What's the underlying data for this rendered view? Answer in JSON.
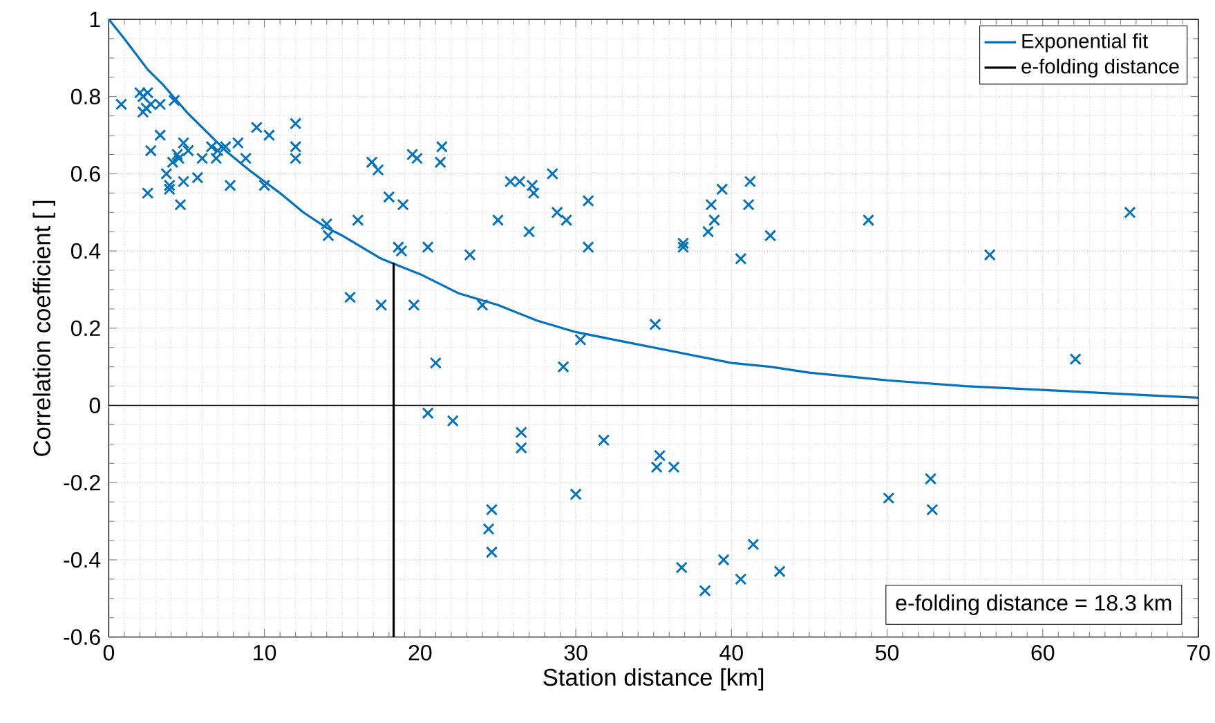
{
  "chart_data": {
    "type": "scatter",
    "xlabel": "Station distance [km]",
    "ylabel": "Correlation coefficient [ ]",
    "xlim": [
      0,
      70
    ],
    "ylim": [
      -0.6,
      1
    ],
    "xticks": [
      0,
      10,
      20,
      30,
      40,
      50,
      60,
      70
    ],
    "yticks": [
      -0.6,
      -0.4,
      -0.2,
      0,
      0.2,
      0.4,
      0.6,
      0.8,
      1
    ],
    "grid": true,
    "legend": "top right",
    "annotations": [
      "e-folding distance = 18.3 km"
    ],
    "ref_lines": [
      {
        "axis": "y",
        "value": 0,
        "color": "#000000"
      }
    ],
    "series": [
      {
        "marker": "cross",
        "color": "#0072bd",
        "x": [
          0.8,
          2,
          2.2,
          2.4,
          2.5,
          2.2,
          2.7,
          3.3,
          4.2,
          2.5,
          2.7,
          3.3,
          3.7,
          3.9,
          4.1,
          4.4,
          4.5,
          4.8,
          4.6,
          5.1,
          3.9,
          4.8,
          5.7,
          6.0,
          6.6,
          7.0,
          6.9,
          7.5,
          7.8,
          8.3,
          8.8,
          9.5,
          10.3,
          10.0,
          12,
          12,
          12,
          14,
          14.1,
          15.5,
          16,
          16.9,
          17.3,
          17.5,
          18,
          18.6,
          18.8,
          18.9,
          19.5,
          19.8,
          19.6,
          20.5,
          20.5,
          21,
          21.3,
          21.4,
          22.1,
          23.2,
          24,
          24.4,
          24.6,
          24.6,
          25,
          25.8,
          26.4,
          26.5,
          26.5,
          27,
          27.2,
          27.3,
          28.5,
          28.8,
          29.2,
          29.4,
          30.0,
          30.3,
          30.8,
          30.8,
          31.8,
          35.1,
          35.2,
          35.4,
          36.3,
          36.9,
          36.9,
          36.8,
          38.3,
          38.5,
          38.7,
          38.9,
          39.4,
          39.5,
          40.6,
          40.6,
          41.1,
          41.2,
          41.4,
          42.5,
          43.1,
          48.8,
          50.1,
          52.8,
          52.9,
          56.6,
          62.1,
          65.6
        ],
        "values": [
          0.78,
          0.81,
          0.8,
          0.77,
          0.81,
          0.76,
          0.78,
          0.78,
          0.79,
          0.55,
          0.66,
          0.7,
          0.6,
          0.57,
          0.63,
          0.65,
          0.64,
          0.58,
          0.52,
          0.66,
          0.56,
          0.68,
          0.59,
          0.64,
          0.67,
          0.66,
          0.64,
          0.67,
          0.57,
          0.68,
          0.64,
          0.72,
          0.7,
          0.57,
          0.73,
          0.67,
          0.64,
          0.47,
          0.44,
          0.28,
          0.48,
          0.63,
          0.61,
          0.26,
          0.54,
          0.41,
          0.4,
          0.52,
          0.65,
          0.64,
          0.26,
          0.41,
          -0.02,
          0.11,
          0.63,
          0.67,
          -0.04,
          0.39,
          0.26,
          -0.32,
          -0.27,
          -0.38,
          0.48,
          0.58,
          0.58,
          -0.07,
          -0.11,
          0.45,
          0.57,
          0.55,
          0.6,
          0.5,
          0.1,
          0.48,
          -0.23,
          0.17,
          0.41,
          0.53,
          -0.09,
          0.21,
          -0.16,
          -0.13,
          -0.16,
          0.42,
          0.41,
          -0.42,
          -0.48,
          0.45,
          0.52,
          0.48,
          0.56,
          -0.4,
          -0.45,
          0.38,
          0.52,
          0.58,
          -0.36,
          0.44,
          -0.43,
          0.48,
          -0.24,
          -0.19,
          -0.27,
          0.39,
          0.12,
          0.5
        ]
      },
      {
        "type": "line",
        "name": "Exponential fit",
        "color": "#0072bd",
        "x": [
          0,
          1,
          2.5,
          3.5,
          5,
          6,
          7.5,
          9,
          10,
          11,
          12.5,
          14,
          15,
          17.5,
          20,
          22.5,
          25,
          27.5,
          30,
          32.5,
          35,
          37.5,
          40,
          42.5,
          45,
          47.5,
          50,
          55,
          60,
          65,
          70
        ],
        "values": [
          1,
          0.95,
          0.87,
          0.83,
          0.76,
          0.72,
          0.66,
          0.61,
          0.58,
          0.55,
          0.5,
          0.46,
          0.44,
          0.38,
          0.34,
          0.29,
          0.26,
          0.22,
          0.19,
          0.17,
          0.15,
          0.13,
          0.11,
          0.1,
          0.085,
          0.075,
          0.065,
          0.05,
          0.04,
          0.03,
          0.02
        ]
      },
      {
        "type": "line",
        "name": "e-folding distance",
        "color": "#000000",
        "x": [
          18.3,
          18.3
        ],
        "values": [
          -0.6,
          0.37
        ]
      }
    ]
  }
}
